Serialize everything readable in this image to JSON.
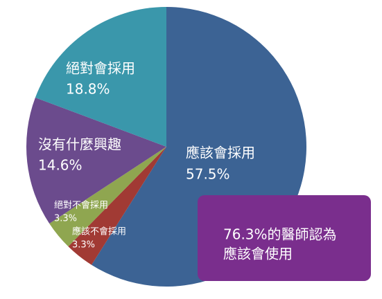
{
  "chart_data": {
    "type": "pie",
    "categories": [
      "應該會採用",
      "應該不會採用",
      "絕對不會採用",
      "沒有什麼興趣",
      "絕對會採用"
    ],
    "values": [
      57.5,
      3.3,
      3.3,
      14.6,
      18.8
    ],
    "value_labels": [
      "57.5%",
      "3.3%",
      "3.3%",
      "14.6%",
      "18.8%"
    ],
    "colors": [
      "#3c6394",
      "#a13a34",
      "#8fa650",
      "#6b4b8d",
      "#3a97ab"
    ],
    "annotation": [
      "76.3%的醫師認為",
      "應該會使用"
    ]
  }
}
